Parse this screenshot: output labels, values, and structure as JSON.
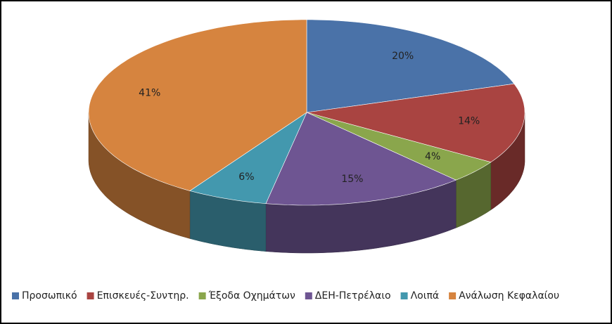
{
  "chart_data": {
    "type": "pie3d",
    "categories": [
      "Προσωπικό",
      "Επισκευές-Συντηρ.",
      "Έξοδα Οχημάτων",
      "ΔΕΗ-Πετρέλαιο",
      "Λοιπά",
      "Ανάλωση Κεφαλαίου"
    ],
    "values": [
      20,
      14,
      4,
      15,
      6,
      41
    ],
    "value_labels": [
      "20%",
      "14%",
      "4%",
      "15%",
      "6%",
      "41%"
    ],
    "colors": [
      "#4a72a8",
      "#a94441",
      "#8aa64c",
      "#6e5592",
      "#4398ae",
      "#d6843f"
    ],
    "legend": "bottom"
  }
}
